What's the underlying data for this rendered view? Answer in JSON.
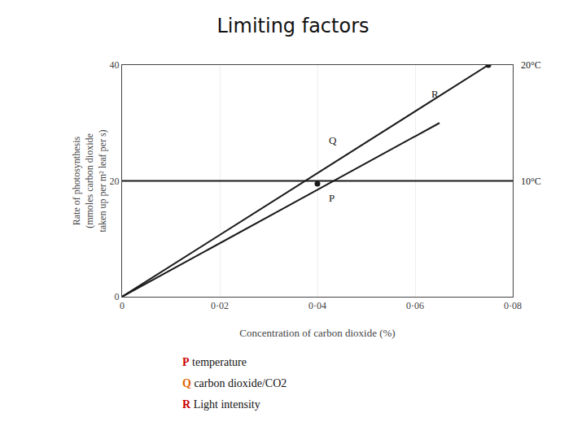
{
  "chart_data": {
    "type": "line",
    "title": "Limiting factors",
    "x_label": "Concentration of carbon dioxide (%)",
    "y_label": [
      "Rate of photosynthesis",
      "(mmoles carbon dioxide",
      "taken up per m² leaf per s)"
    ],
    "xlim": [
      0,
      0.08
    ],
    "ylim": [
      0,
      40
    ],
    "xticks": [
      0,
      {
        "value": 0.02,
        "label": "0·02"
      },
      {
        "value": 0.04,
        "label": "0·04"
      },
      {
        "value": 0.06,
        "label": "0·06"
      },
      {
        "value": 0.08,
        "label": "0·08"
      }
    ],
    "yticks": [
      0,
      20,
      40
    ],
    "grid": true,
    "series": [
      {
        "x": [
          0,
          0.075
        ],
        "values": [
          0,
          40
        ],
        "color": "#1a1a1a",
        "line_style": "solid"
      },
      {
        "x": [
          0,
          0.065
        ],
        "values": [
          0,
          30
        ],
        "color": "#1a1a1a",
        "line_style": "solid"
      },
      {
        "x": [
          0,
          0.08
        ],
        "values": [
          20,
          20
        ],
        "color": "#1a1a1a",
        "line_style": "solid"
      },
      {
        "x": [
          0.075
        ],
        "values": [
          40
        ],
        "color": "#1a1a1a",
        "marker": "circle",
        "line_style": "none"
      },
      {
        "x": [
          0.04
        ],
        "values": [
          19.5
        ],
        "color": "#1a1a1a",
        "marker": "circle",
        "line_style": "none"
      }
    ],
    "annotations": [
      {
        "text": "R",
        "x": 0.063,
        "y": 35
      },
      {
        "text": "Q",
        "x": 0.042,
        "y": 27
      },
      {
        "text": "P",
        "x": 0.042,
        "y": 17
      },
      {
        "text": "20°C",
        "y": 40
      },
      {
        "text": "10°C",
        "y": 20
      }
    ],
    "key_items": [
      {
        "letter": "P",
        "color": "#cc0000",
        "text": "temperature"
      },
      {
        "letter": "Q",
        "color": "#dd6600",
        "text": "carbon dioxide/CO2"
      },
      {
        "letter": "R",
        "color": "#cc0000",
        "text": "Light intensity"
      }
    ]
  }
}
